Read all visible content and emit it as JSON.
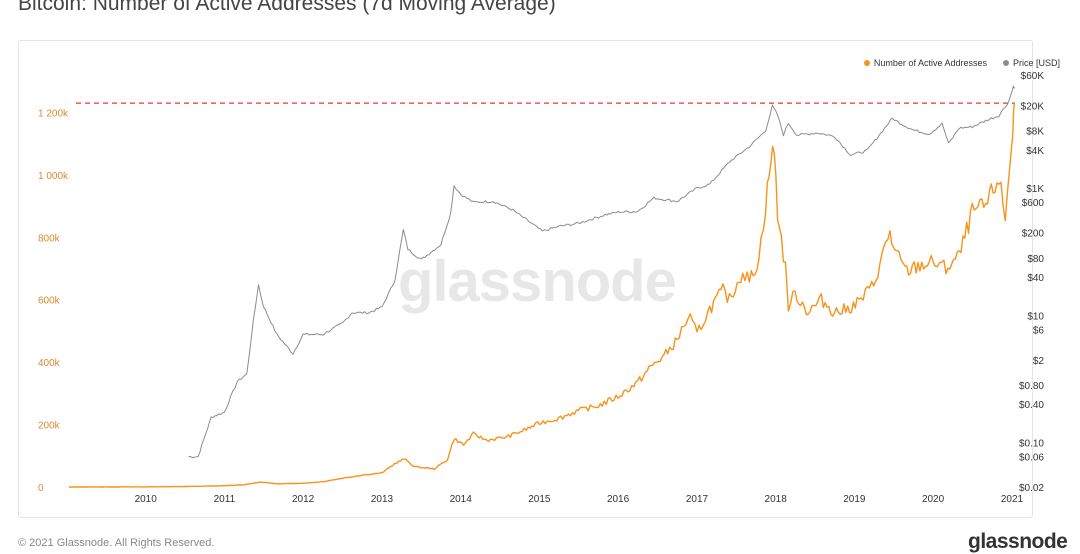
{
  "page": {
    "title": "Bitcoin: Number of Active Addresses (7d Moving Average)",
    "watermark": "glassnode",
    "footer_copyright": "© 2021 Glassnode. All Rights Reserved.",
    "footer_logo": "glassnode"
  },
  "colors": {
    "active_addresses": "#f7931a",
    "price": "#8c8c8c",
    "ath_line": "#e0392b",
    "left_axis_text": "#d98a2e"
  },
  "chart_data": {
    "type": "line",
    "title": "Bitcoin: Number of Active Addresses (7d Moving Average)",
    "x_ticks": [
      "2010",
      "2011",
      "2012",
      "2013",
      "2014",
      "2015",
      "2016",
      "2017",
      "2018",
      "2019",
      "2020",
      "2021"
    ],
    "xlim": [
      "2009-01-01",
      "2021-01-15"
    ],
    "left_axis": {
      "label": "",
      "ticks": [
        0,
        200000,
        400000,
        600000,
        800000,
        1000000,
        1200000
      ],
      "tick_labels": [
        "0",
        "200k",
        "400k",
        "600k",
        "800k",
        "1 000k",
        "1 200k"
      ],
      "ylim": [
        0,
        1320000
      ]
    },
    "right_axis": {
      "label": "",
      "scale": "log",
      "ticks": [
        0.02,
        0.06,
        0.1,
        0.4,
        0.8,
        2,
        6,
        10,
        40,
        80,
        200,
        600,
        1000,
        4000,
        8000,
        20000,
        60000
      ],
      "tick_labels": [
        "$0.02",
        "$0.06",
        "$0.10",
        "$0.40",
        "$0.80",
        "$2",
        "$6",
        "$10",
        "$40",
        "$80",
        "$200",
        "$600",
        "$1K",
        "$4K",
        "$8K",
        "$20K",
        "$60K"
      ],
      "ylim": [
        0.02,
        60000
      ]
    },
    "legend": {
      "position": "top-right"
    },
    "series": [
      {
        "name": "Number of Active Addresses",
        "axis": "left",
        "points": [
          [
            "2009-01-10",
            0
          ],
          [
            "2010-01-01",
            500
          ],
          [
            "2010-07-01",
            1500
          ],
          [
            "2011-01-01",
            4000
          ],
          [
            "2011-04-01",
            7000
          ],
          [
            "2011-06-01",
            14000
          ],
          [
            "2011-06-20",
            16000
          ],
          [
            "2011-09-01",
            10000
          ],
          [
            "2012-01-01",
            12000
          ],
          [
            "2012-04-01",
            17000
          ],
          [
            "2012-07-01",
            28000
          ],
          [
            "2012-10-01",
            38000
          ],
          [
            "2013-01-01",
            45000
          ],
          [
            "2013-03-01",
            75000
          ],
          [
            "2013-04-15",
            90000
          ],
          [
            "2013-06-01",
            65000
          ],
          [
            "2013-09-01",
            58000
          ],
          [
            "2013-11-01",
            88000
          ],
          [
            "2013-12-01",
            155000
          ],
          [
            "2014-01-15",
            135000
          ],
          [
            "2014-03-01",
            170000
          ],
          [
            "2014-05-01",
            150000
          ],
          [
            "2014-08-01",
            160000
          ],
          [
            "2014-11-01",
            185000
          ],
          [
            "2015-01-01",
            205000
          ],
          [
            "2015-04-01",
            220000
          ],
          [
            "2015-07-01",
            245000
          ],
          [
            "2015-10-01",
            260000
          ],
          [
            "2016-01-01",
            290000
          ],
          [
            "2016-04-01",
            335000
          ],
          [
            "2016-06-01",
            385000
          ],
          [
            "2016-08-01",
            420000
          ],
          [
            "2016-10-01",
            470000
          ],
          [
            "2016-11-01",
            520000
          ],
          [
            "2016-12-01",
            540000
          ],
          [
            "2017-01-01",
            490000
          ],
          [
            "2017-03-01",
            570000
          ],
          [
            "2017-05-01",
            630000
          ],
          [
            "2017-06-01",
            600000
          ],
          [
            "2017-08-01",
            690000
          ],
          [
            "2017-09-01",
            660000
          ],
          [
            "2017-10-15",
            730000
          ],
          [
            "2017-11-15",
            900000
          ],
          [
            "2017-12-10",
            1050000
          ],
          [
            "2017-12-25",
            1080000
          ],
          [
            "2018-01-10",
            880000
          ],
          [
            "2018-02-15",
            700000
          ],
          [
            "2018-03-01",
            580000
          ],
          [
            "2018-04-01",
            620000
          ],
          [
            "2018-06-01",
            560000
          ],
          [
            "2018-08-01",
            600000
          ],
          [
            "2018-10-01",
            560000
          ],
          [
            "2018-12-01",
            570000
          ],
          [
            "2019-02-01",
            600000
          ],
          [
            "2019-04-01",
            650000
          ],
          [
            "2019-06-15",
            820000
          ],
          [
            "2019-07-01",
            760000
          ],
          [
            "2019-09-01",
            690000
          ],
          [
            "2019-11-01",
            710000
          ],
          [
            "2020-01-01",
            720000
          ],
          [
            "2020-03-01",
            700000
          ],
          [
            "2020-05-01",
            740000
          ],
          [
            "2020-07-01",
            880000
          ],
          [
            "2020-09-01",
            900000
          ],
          [
            "2020-11-01",
            990000
          ],
          [
            "2020-12-01",
            860000
          ],
          [
            "2020-12-20",
            1020000
          ],
          [
            "2021-01-05",
            1150000
          ],
          [
            "2021-01-12",
            1230000
          ]
        ]
      },
      {
        "name": "Price [USD]",
        "axis": "right",
        "points": [
          [
            "2010-07-18",
            0.06
          ],
          [
            "2010-09-01",
            0.06
          ],
          [
            "2010-11-01",
            0.25
          ],
          [
            "2011-01-01",
            0.3
          ],
          [
            "2011-03-01",
            0.9
          ],
          [
            "2011-04-15",
            1.2
          ],
          [
            "2011-05-15",
            8
          ],
          [
            "2011-06-08",
            30
          ],
          [
            "2011-07-01",
            14
          ],
          [
            "2011-09-01",
            5
          ],
          [
            "2011-11-15",
            2.5
          ],
          [
            "2012-01-01",
            5
          ],
          [
            "2012-04-01",
            5
          ],
          [
            "2012-07-01",
            7.5
          ],
          [
            "2012-08-15",
            11
          ],
          [
            "2012-11-01",
            11
          ],
          [
            "2013-01-01",
            13.5
          ],
          [
            "2013-03-01",
            35
          ],
          [
            "2013-04-10",
            220
          ],
          [
            "2013-05-01",
            110
          ],
          [
            "2013-07-01",
            75
          ],
          [
            "2013-10-01",
            130
          ],
          [
            "2013-11-15",
            400
          ],
          [
            "2013-12-01",
            1100
          ],
          [
            "2014-01-01",
            800
          ],
          [
            "2014-03-01",
            600
          ],
          [
            "2014-06-01",
            620
          ],
          [
            "2014-09-01",
            450
          ],
          [
            "2015-01-15",
            210
          ],
          [
            "2015-04-01",
            250
          ],
          [
            "2015-07-01",
            280
          ],
          [
            "2015-11-01",
            380
          ],
          [
            "2016-01-01",
            420
          ],
          [
            "2016-04-01",
            430
          ],
          [
            "2016-06-15",
            700
          ],
          [
            "2016-10-01",
            620
          ],
          [
            "2017-01-01",
            1000
          ],
          [
            "2017-03-01",
            1150
          ],
          [
            "2017-06-01",
            2600
          ],
          [
            "2017-09-01",
            4500
          ],
          [
            "2017-11-15",
            8000
          ],
          [
            "2017-12-17",
            19500
          ],
          [
            "2018-01-10",
            14000
          ],
          [
            "2018-02-06",
            6900
          ],
          [
            "2018-03-01",
            10500
          ],
          [
            "2018-04-10",
            6800
          ],
          [
            "2018-07-15",
            7400
          ],
          [
            "2018-10-01",
            6500
          ],
          [
            "2018-12-15",
            3300
          ],
          [
            "2019-03-01",
            3900
          ],
          [
            "2019-06-26",
            12500
          ],
          [
            "2019-08-01",
            10500
          ],
          [
            "2019-10-01",
            8200
          ],
          [
            "2019-12-15",
            7100
          ],
          [
            "2020-02-12",
            10300
          ],
          [
            "2020-03-13",
            5000
          ],
          [
            "2020-05-01",
            8800
          ],
          [
            "2020-07-01",
            9200
          ],
          [
            "2020-09-01",
            11500
          ],
          [
            "2020-11-01",
            13800
          ],
          [
            "2020-12-17",
            23000
          ],
          [
            "2021-01-08",
            40000
          ],
          [
            "2021-01-14",
            38000
          ]
        ]
      }
    ],
    "reference_line": {
      "axis": "left",
      "value": 1230000,
      "style": "dashed"
    }
  }
}
